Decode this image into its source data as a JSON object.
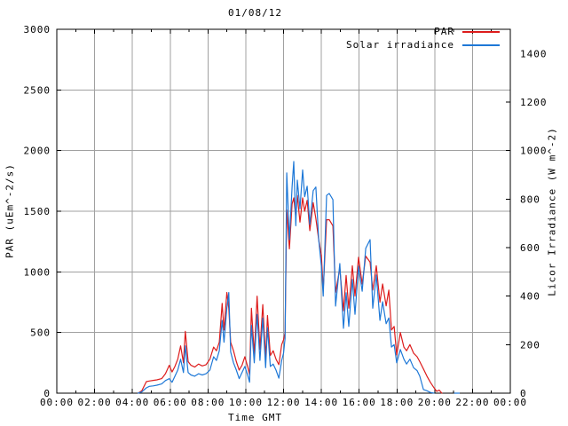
{
  "title": "01/08/12",
  "legend": {
    "par_label": "PAR",
    "solar_label": "Solar irradiance"
  },
  "colors": {
    "par": "#dd1c1c",
    "solar": "#1e78d7",
    "grid": "#a0a0a0",
    "axis": "#000000",
    "background": "#ffffff"
  },
  "axes": {
    "x": {
      "label": "Time GMT",
      "min_hours": 0,
      "max_hours": 24,
      "major_tick_hours": 2,
      "minor_tick_hours": 1,
      "tick_labels": [
        "00:00",
        "02:00",
        "04:00",
        "06:00",
        "08:00",
        "10:00",
        "12:00",
        "14:00",
        "16:00",
        "18:00",
        "20:00",
        "22:00",
        "00:00"
      ]
    },
    "y_left": {
      "label": "PAR (uEm^-2/s)",
      "min": 0,
      "max": 3000,
      "tick_step": 500,
      "tick_labels": [
        "0",
        "500",
        "1000",
        "1500",
        "2000",
        "2500",
        "3000"
      ]
    },
    "y_right": {
      "label": "Licor Irradiance (W m^-2)",
      "min": 0,
      "max": 1500,
      "tick_step": 200,
      "tick_labels": [
        "0",
        "200",
        "400",
        "600",
        "800",
        "1000",
        "1200",
        "1400"
      ]
    }
  },
  "chart_data": {
    "type": "line",
    "title": "01/08/12",
    "xlabel": "Time GMT",
    "x_unit": "hours",
    "xlim": [
      0,
      24
    ],
    "ylim_left": [
      0,
      3000
    ],
    "ylim_right": [
      0,
      1500
    ],
    "grid": true,
    "legend_position": "top-right-inside",
    "x": [
      4.3,
      4.5,
      4.74,
      4.9,
      5.1,
      5.3,
      5.55,
      5.75,
      5.95,
      6.1,
      6.25,
      6.4,
      6.55,
      6.7,
      6.8,
      6.95,
      7.1,
      7.3,
      7.5,
      7.7,
      7.9,
      8.1,
      8.3,
      8.45,
      8.6,
      8.75,
      8.85,
      9.0,
      9.1,
      9.2,
      9.35,
      9.5,
      9.65,
      9.8,
      9.95,
      10.1,
      10.2,
      10.3,
      10.45,
      10.6,
      10.75,
      10.9,
      11.05,
      11.15,
      11.3,
      11.45,
      11.6,
      11.75,
      11.9,
      12.0,
      12.08,
      12.17,
      12.31,
      12.45,
      12.54,
      12.65,
      12.73,
      12.87,
      13.01,
      13.12,
      13.25,
      13.39,
      13.57,
      13.71,
      13.86,
      14.0,
      14.1,
      14.28,
      14.42,
      14.61,
      14.75,
      14.98,
      15.17,
      15.31,
      15.45,
      15.64,
      15.78,
      15.97,
      16.16,
      16.35,
      16.58,
      16.72,
      16.91,
      17.1,
      17.24,
      17.43,
      17.57,
      17.71,
      17.85,
      17.99,
      18.18,
      18.37,
      18.51,
      18.69,
      18.88,
      19.07,
      19.21,
      19.4,
      19.59,
      19.77,
      19.96,
      20.1,
      20.24,
      20.38,
      21.05,
      21.3
    ],
    "series": [
      {
        "name": "PAR",
        "axis": "left",
        "unit": "uEm^-2/s",
        "color": "#dd1c1c",
        "values": [
          0,
          20,
          95,
          100,
          105,
          110,
          120,
          160,
          230,
          175,
          220,
          280,
          390,
          250,
          510,
          260,
          230,
          215,
          240,
          225,
          235,
          280,
          380,
          350,
          420,
          740,
          520,
          830,
          700,
          420,
          350,
          260,
          190,
          230,
          300,
          220,
          155,
          700,
          320,
          800,
          360,
          730,
          290,
          640,
          310,
          350,
          280,
          235,
          400,
          440,
          500,
          1510,
          1190,
          1560,
          1610,
          1450,
          1630,
          1410,
          1610,
          1500,
          1590,
          1340,
          1570,
          1440,
          1265,
          1140,
          850,
          1430,
          1430,
          1380,
          830,
          1030,
          680,
          970,
          700,
          1050,
          800,
          1120,
          900,
          1130,
          1080,
          850,
          1050,
          750,
          900,
          720,
          850,
          520,
          550,
          315,
          500,
          380,
          350,
          400,
          330,
          300,
          260,
          200,
          140,
          90,
          45,
          15,
          25,
          0,
          null,
          null
        ]
      },
      {
        "name": "Solar irradiance",
        "axis": "right",
        "unit": "W m^-2",
        "color": "#1e78d7",
        "values": [
          0,
          5,
          22,
          28,
          30,
          33,
          38,
          52,
          60,
          45,
          70,
          95,
          140,
          85,
          195,
          85,
          75,
          70,
          80,
          75,
          80,
          95,
          150,
          135,
          175,
          300,
          210,
          350,
          415,
          170,
          125,
          95,
          60,
          85,
          110,
          75,
          45,
          280,
          125,
          325,
          135,
          310,
          105,
          270,
          110,
          120,
          95,
          62,
          135,
          165,
          225,
          908,
          633,
          850,
          955,
          690,
          878,
          760,
          920,
          810,
          853,
          695,
          835,
          850,
          633,
          523,
          400,
          815,
          823,
          798,
          359,
          534,
          267,
          414,
          275,
          469,
          325,
          523,
          420,
          597,
          633,
          350,
          487,
          300,
          377,
          286,
          310,
          190,
          200,
          125,
          180,
          140,
          120,
          140,
          105,
          93,
          70,
          15,
          10,
          3,
          0,
          null,
          null,
          null,
          0,
          0
        ]
      }
    ]
  }
}
